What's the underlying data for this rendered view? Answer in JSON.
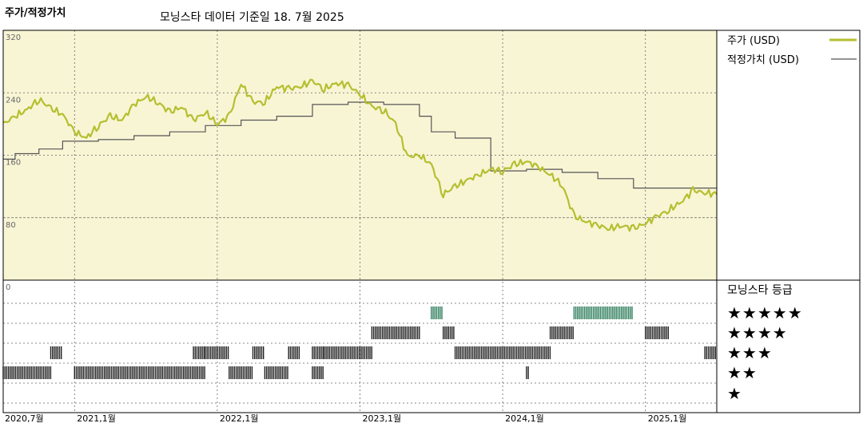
{
  "header": {
    "title": "주가/적정가치",
    "subtitle": "모닝스타 데이터 기준일 18. 7월 2025"
  },
  "legend": {
    "price_label": "주가 (USD)",
    "fair_value_label": "적정가치 (USD)",
    "rating_title": "모닝스타 등급",
    "star_rows": [
      "★★★★★",
      "★★★★",
      "★★★",
      "★★",
      "★"
    ]
  },
  "colors": {
    "price": "#b5bf2f",
    "fair_value": "#555555",
    "panel_bg": "#f8f5d5",
    "five_star": "#2e7d5b",
    "rating_bar": "#222222",
    "grid": "#666666"
  },
  "chart_data": {
    "type": "line",
    "y_tick_labels": [
      "320",
      "240",
      "160",
      "80",
      "0"
    ],
    "ylim": [
      0,
      320
    ],
    "x_tick_labels": [
      "2020,7월",
      "2021,1월",
      "2022,1월",
      "2023,1월",
      "2024,1월",
      "2025,1월"
    ],
    "xlim": [
      "2020-07",
      "2025-07"
    ],
    "series": [
      {
        "name": "주가 (USD)",
        "x": [
          "2020-07",
          "2020-08",
          "2020-09",
          "2020-10",
          "2020-11",
          "2020-12",
          "2021-01",
          "2021-02",
          "2021-03",
          "2021-04",
          "2021-05",
          "2021-06",
          "2021-07",
          "2021-08",
          "2021-09",
          "2021-10",
          "2021-11",
          "2021-12",
          "2022-01",
          "2022-02",
          "2022-03",
          "2022-04",
          "2022-05",
          "2022-06",
          "2022-07",
          "2022-08",
          "2022-09",
          "2022-10",
          "2022-11",
          "2022-12",
          "2023-01",
          "2023-02",
          "2023-03",
          "2023-04",
          "2023-05",
          "2023-06",
          "2023-07",
          "2023-08",
          "2023-09",
          "2023-10",
          "2023-11",
          "2023-12",
          "2024-01",
          "2024-02",
          "2024-03",
          "2024-04",
          "2024-05",
          "2024-06",
          "2024-07",
          "2024-08",
          "2024-09",
          "2024-10",
          "2024-11",
          "2024-12",
          "2025-01",
          "2025-02",
          "2025-03",
          "2025-04",
          "2025-05",
          "2025-06",
          "2025-07"
        ],
        "values": [
          200,
          210,
          218,
          232,
          220,
          212,
          190,
          182,
          198,
          210,
          205,
          225,
          235,
          228,
          215,
          222,
          205,
          215,
          200,
          210,
          252,
          228,
          228,
          248,
          245,
          248,
          255,
          245,
          252,
          250,
          238,
          222,
          218,
          200,
          158,
          160,
          148,
          110,
          120,
          128,
          135,
          142,
          140,
          148,
          152,
          145,
          135,
          122,
          82,
          75,
          70,
          66,
          70,
          66,
          73,
          82,
          90,
          100,
          115,
          112,
          110
        ]
      },
      {
        "name": "적정가치 (USD)",
        "x": [
          "2020-07",
          "2020-08",
          "2020-10",
          "2020-12",
          "2021-03",
          "2021-06",
          "2021-09",
          "2021-12",
          "2022-03",
          "2022-06",
          "2022-09",
          "2022-12",
          "2023-03",
          "2023-06",
          "2023-07",
          "2023-09",
          "2023-12",
          "2024-03",
          "2024-06",
          "2024-09",
          "2024-12",
          "2025-03",
          "2025-07"
        ],
        "values": [
          155,
          162,
          168,
          178,
          180,
          185,
          190,
          198,
          205,
          210,
          225,
          228,
          225,
          210,
          190,
          182,
          140,
          142,
          138,
          130,
          118,
          118,
          118
        ]
      }
    ],
    "ratings": [
      {
        "stars": 5,
        "ranges": [
          [
            "2023-07",
            "2023-08"
          ],
          [
            "2024-07",
            "2024-12"
          ]
        ]
      },
      {
        "stars": 4,
        "ranges": [
          [
            "2023-02",
            "2023-06"
          ],
          [
            "2023-08",
            "2023-09"
          ],
          [
            "2024-05",
            "2024-07"
          ],
          [
            "2025-01",
            "2025-03"
          ]
        ]
      },
      {
        "stars": 3,
        "ranges": [
          [
            "2020-11",
            "2020-12"
          ],
          [
            "2021-11",
            "2021-12"
          ],
          [
            "2021-12",
            "2022-02"
          ],
          [
            "2022-04",
            "2022-05"
          ],
          [
            "2022-07",
            "2022-08"
          ],
          [
            "2022-09",
            "2022-10"
          ],
          [
            "2022-10",
            "2023-02"
          ],
          [
            "2023-09",
            "2024-05"
          ],
          [
            "2025-06",
            "2025-07"
          ]
        ]
      },
      {
        "stars": 2,
        "ranges": [
          [
            "2020-07",
            "2020-11"
          ],
          [
            "2021-01",
            "2021-12"
          ],
          [
            "2022-02",
            "2022-04"
          ],
          [
            "2022-05",
            "2022-07"
          ],
          [
            "2022-09",
            "2022-10"
          ],
          [
            "2024-03",
            "2024-03"
          ]
        ]
      },
      {
        "stars": 1,
        "ranges": []
      }
    ]
  }
}
